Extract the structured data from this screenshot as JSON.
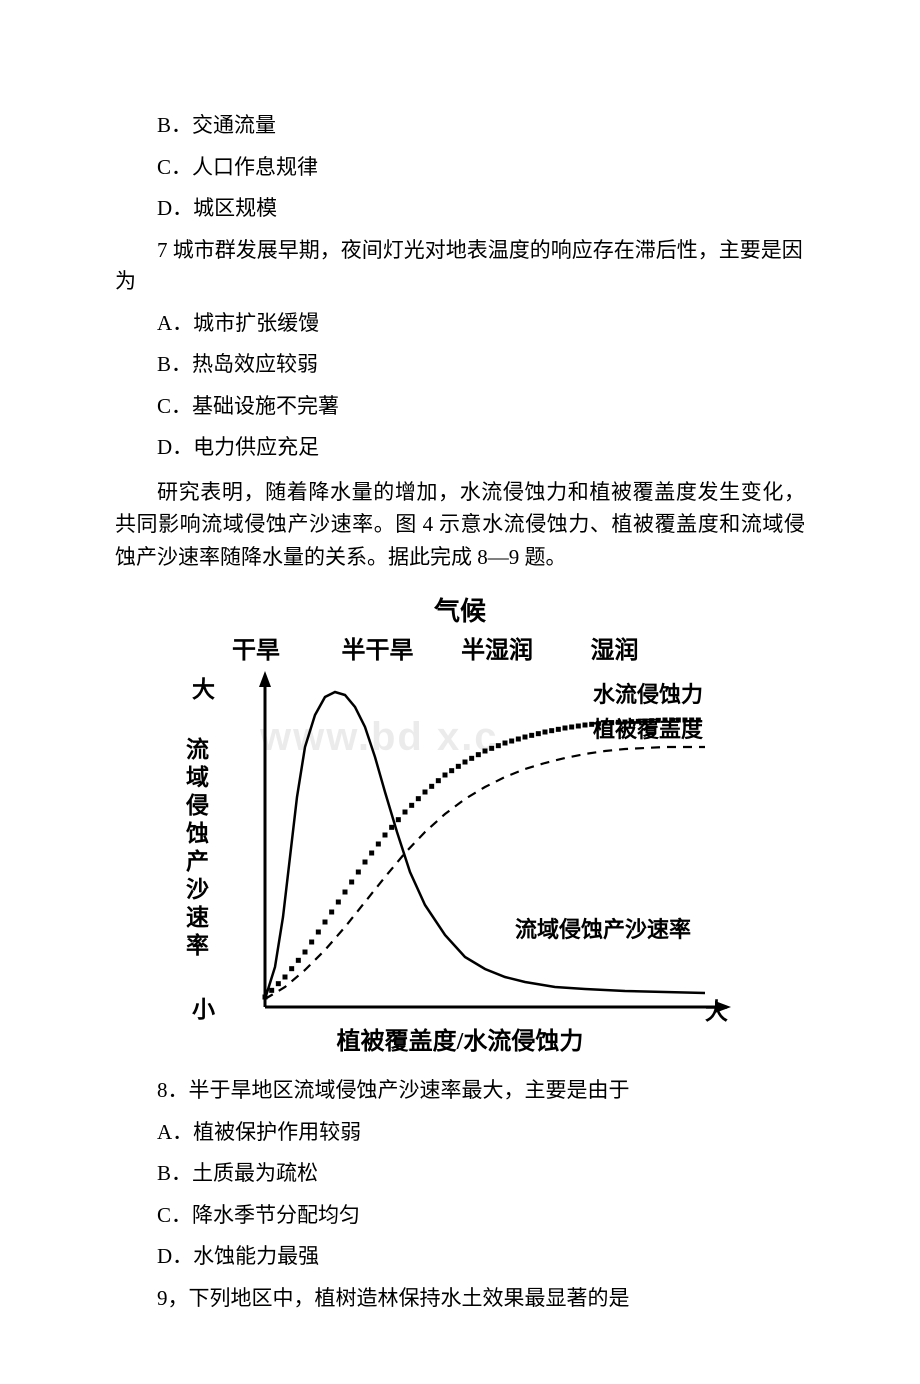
{
  "q_prev": {
    "options": {
      "b": "B．交通流量",
      "c": "C．人口作息规律",
      "d": "D．城区规模"
    }
  },
  "q7": {
    "stem": "7 城市群发展早期，夜间灯光对地表温度的响应存在滞后性，主要是因为",
    "options": {
      "a": "A．城市扩张缓馒",
      "b": "B．热岛效应较弱",
      "c": "C．基础设施不完薯",
      "d": "D．电力供应充足"
    }
  },
  "passage2": "研究表明，随着降水量的增加，水流侵蚀力和植被覆盖度发生变化，共同影响流域侵蚀产沙速率。图 4 示意水流侵蚀力、植被覆盖度和流域侵蚀产沙速率随降水量的关系。据此完成 8—9 题。",
  "chart": {
    "title": "气候",
    "climate_labels": [
      "干旱",
      "半干旱",
      "半湿润",
      "湿润"
    ],
    "y_top_inner": "大",
    "y_bottom_inner": "小",
    "y_axis_label_vertical": "流域侵蚀产沙速率",
    "x_right_inner": "大",
    "x_axis_label": "植被覆盖度/水流侵蚀力",
    "series": {
      "water_erosion": {
        "label": "水流侵蚀力",
        "style": "dotted-thick",
        "color": "#000000",
        "points": [
          [
            40,
            330
          ],
          [
            60,
            310
          ],
          [
            80,
            285
          ],
          [
            100,
            255
          ],
          [
            120,
            225
          ],
          [
            140,
            195
          ],
          [
            160,
            168
          ],
          [
            180,
            145
          ],
          [
            200,
            125
          ],
          [
            220,
            108
          ],
          [
            240,
            95
          ],
          [
            260,
            84
          ],
          [
            280,
            76
          ],
          [
            300,
            70
          ],
          [
            320,
            65
          ],
          [
            340,
            61
          ],
          [
            360,
            58
          ],
          [
            380,
            56
          ],
          [
            400,
            55
          ],
          [
            420,
            54
          ],
          [
            440,
            53
          ],
          [
            460,
            53
          ],
          [
            480,
            53
          ]
        ]
      },
      "veg_cover": {
        "label": "植被覆盖度",
        "style": "dashed",
        "color": "#000000",
        "points": [
          [
            40,
            332
          ],
          [
            60,
            320
          ],
          [
            80,
            303
          ],
          [
            100,
            283
          ],
          [
            120,
            260
          ],
          [
            140,
            235
          ],
          [
            160,
            210
          ],
          [
            180,
            186
          ],
          [
            200,
            165
          ],
          [
            220,
            147
          ],
          [
            240,
            132
          ],
          [
            260,
            120
          ],
          [
            280,
            110
          ],
          [
            300,
            102
          ],
          [
            320,
            96
          ],
          [
            340,
            91
          ],
          [
            360,
            87
          ],
          [
            380,
            84
          ],
          [
            400,
            82
          ],
          [
            420,
            81
          ],
          [
            440,
            80
          ],
          [
            460,
            80
          ],
          [
            480,
            80
          ]
        ]
      },
      "sediment_rate": {
        "label": "流域侵蚀产沙速率",
        "style": "solid",
        "color": "#000000",
        "points": [
          [
            40,
            332
          ],
          [
            50,
            300
          ],
          [
            58,
            250
          ],
          [
            65,
            190
          ],
          [
            72,
            130
          ],
          [
            80,
            80
          ],
          [
            90,
            48
          ],
          [
            100,
            30
          ],
          [
            110,
            25
          ],
          [
            120,
            28
          ],
          [
            130,
            40
          ],
          [
            140,
            60
          ],
          [
            150,
            90
          ],
          [
            160,
            125
          ],
          [
            172,
            165
          ],
          [
            185,
            205
          ],
          [
            200,
            238
          ],
          [
            220,
            268
          ],
          [
            240,
            290
          ],
          [
            260,
            302
          ],
          [
            280,
            310
          ],
          [
            300,
            315
          ],
          [
            330,
            320
          ],
          [
            360,
            322
          ],
          [
            400,
            324
          ],
          [
            440,
            325
          ],
          [
            480,
            326
          ]
        ]
      }
    },
    "axis_color": "#000000",
    "font_label": "SimHei"
  },
  "q8": {
    "stem": "8．半于旱地区流域侵蚀产沙速率最大，主要是由于",
    "options": {
      "a": "A．植被保护作用较弱",
      "b": "B．土质最为疏松",
      "c": "C．降水季节分配均匀",
      "d": "D．水蚀能力最强"
    }
  },
  "q9": {
    "stem": "9，下列地区中，植树造林保持水土效果最显著的是"
  },
  "watermark": "www.bd   x.c"
}
